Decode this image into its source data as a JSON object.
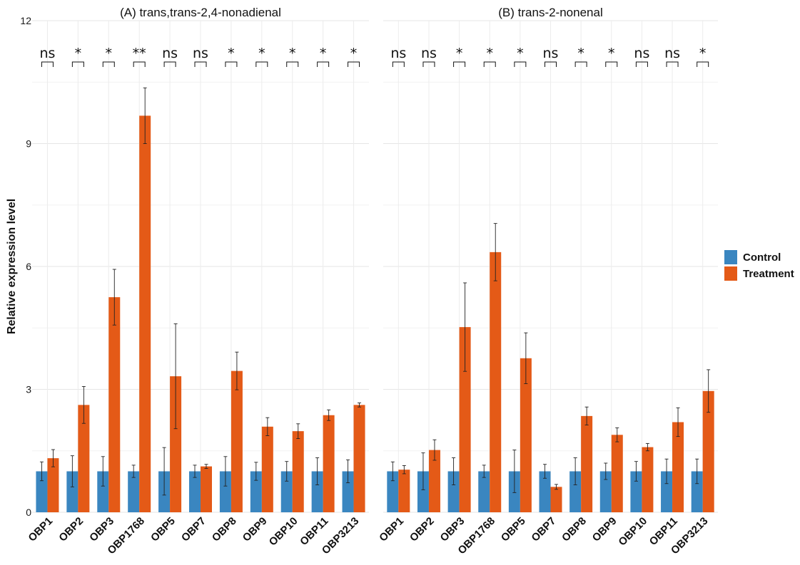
{
  "chart_data": {
    "type": "bar",
    "ylabel": "Relative expression level",
    "yticks": [
      0,
      3,
      6,
      9,
      12
    ],
    "ylim": [
      0,
      12
    ],
    "grid": true,
    "legend": {
      "placement": "right",
      "items": [
        {
          "name": "Control",
          "color": "#3a86c0"
        },
        {
          "name": "Treatment",
          "color": "#e45a17"
        }
      ]
    },
    "panels": [
      {
        "title": "(A) trans,trans-2,4-nonadienal",
        "categories": [
          "OBP1",
          "OBP2",
          "OBP3",
          "OBP1768",
          "OBP5",
          "OBP7",
          "OBP8",
          "OBP9",
          "OBP10",
          "OBP11",
          "OBP3213"
        ],
        "series": [
          {
            "name": "Control",
            "values": [
              1,
              1,
              1,
              1,
              1,
              1,
              1,
              1,
              1,
              1,
              1
            ],
            "errors": [
              0.23,
              0.38,
              0.36,
              0.15,
              0.58,
              0.15,
              0.36,
              0.22,
              0.24,
              0.33,
              0.28
            ]
          },
          {
            "name": "Treatment",
            "values": [
              1.32,
              2.62,
              5.25,
              9.68,
              3.32,
              1.12,
              3.45,
              2.09,
              1.98,
              2.37,
              2.62
            ],
            "errors": [
              0.21,
              0.45,
              0.68,
              0.68,
              1.28,
              0.05,
              0.46,
              0.22,
              0.18,
              0.13,
              0.05
            ]
          }
        ],
        "significance": [
          "ns",
          "*",
          "*",
          "**",
          "ns",
          "ns",
          "*",
          "*",
          "*",
          "*",
          "*"
        ]
      },
      {
        "title": "(B) trans-2-nonenal",
        "categories": [
          "OBP1",
          "OBP2",
          "OBP3",
          "OBP1768",
          "OBP5",
          "OBP7",
          "OBP8",
          "OBP9",
          "OBP10",
          "OBP11",
          "OBP3213"
        ],
        "series": [
          {
            "name": "Control",
            "values": [
              1,
              1,
              1,
              1,
              1,
              1,
              1,
              1,
              1,
              1,
              1
            ],
            "errors": [
              0.23,
              0.45,
              0.33,
              0.15,
              0.52,
              0.17,
              0.33,
              0.2,
              0.24,
              0.3,
              0.3
            ]
          },
          {
            "name": "Treatment",
            "values": [
              1.04,
              1.52,
              4.52,
              6.35,
              3.76,
              0.62,
              2.35,
              1.89,
              1.59,
              2.2,
              2.96
            ],
            "errors": [
              0.1,
              0.25,
              1.08,
              0.7,
              0.62,
              0.06,
              0.22,
              0.17,
              0.09,
              0.35,
              0.52
            ]
          }
        ],
        "significance": [
          "ns",
          "ns",
          "*",
          "*",
          "*",
          "ns",
          "*",
          "*",
          "ns",
          "ns",
          "*"
        ]
      }
    ]
  }
}
